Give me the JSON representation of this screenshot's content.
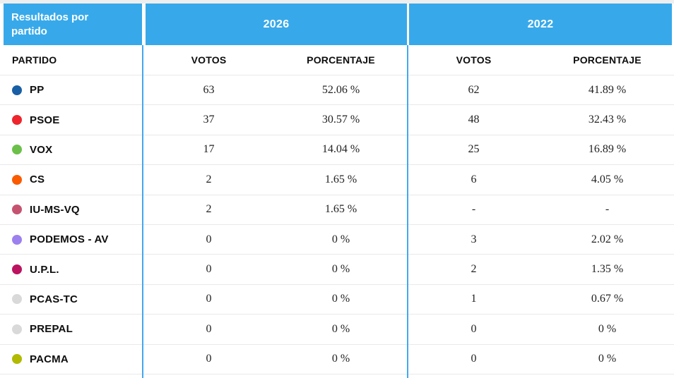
{
  "widget": {
    "title": "Resultados por partido",
    "years": [
      "2026",
      "2022"
    ],
    "column_headers": {
      "party": "PARTIDO",
      "votes": "VOTOS",
      "percentage": "PORCENTAJE"
    },
    "colors": {
      "header_bg": "#37a9ea",
      "divider_line": "#42a9f0",
      "row_border": "#e9e9e9",
      "top_strip": "#eeeeee"
    }
  },
  "rows": [
    {
      "party": "PP",
      "color": "#195fa5",
      "v2026": "63",
      "p2026": "52.06 %",
      "v2022": "62",
      "p2022": "41.89 %"
    },
    {
      "party": "PSOE",
      "color": "#ee252c",
      "v2026": "37",
      "p2026": "30.57 %",
      "v2022": "48",
      "p2022": "32.43 %"
    },
    {
      "party": "VOX",
      "color": "#6cc04a",
      "v2026": "17",
      "p2026": "14.04 %",
      "v2022": "25",
      "p2022": "16.89 %"
    },
    {
      "party": "CS",
      "color": "#fa5b00",
      "v2026": "2",
      "p2026": "1.65 %",
      "v2022": "6",
      "p2022": "4.05 %"
    },
    {
      "party": "IU-MS-VQ",
      "color": "#c5536f",
      "v2026": "2",
      "p2026": "1.65 %",
      "v2022": "-",
      "p2022": "-"
    },
    {
      "party": "PODEMOS - AV",
      "color": "#9c80ee",
      "v2026": "0",
      "p2026": "0 %",
      "v2022": "3",
      "p2022": "2.02 %"
    },
    {
      "party": "U.P.L.",
      "color": "#bb135f",
      "v2026": "0",
      "p2026": "0 %",
      "v2022": "2",
      "p2022": "1.35 %"
    },
    {
      "party": "PCAS-TC",
      "color": "#d9d9d9",
      "v2026": "0",
      "p2026": "0 %",
      "v2022": "1",
      "p2022": "0.67 %"
    },
    {
      "party": "PREPAL",
      "color": "#d9d9d9",
      "v2026": "0",
      "p2026": "0 %",
      "v2022": "0",
      "p2022": "0 %"
    },
    {
      "party": "PACMA",
      "color": "#b1b900",
      "v2026": "0",
      "p2026": "0 %",
      "v2022": "0",
      "p2022": "0 %"
    }
  ],
  "chart_data": {
    "type": "table",
    "title": "Resultados por partido",
    "categories": [
      "PP",
      "PSOE",
      "VOX",
      "CS",
      "IU-MS-VQ",
      "PODEMOS - AV",
      "U.P.L.",
      "PCAS-TC",
      "PREPAL",
      "PACMA"
    ],
    "series": [
      {
        "name": "2026 VOTOS",
        "values": [
          63,
          37,
          17,
          2,
          2,
          0,
          0,
          0,
          0,
          0
        ]
      },
      {
        "name": "2026 PORCENTAJE",
        "values": [
          52.06,
          30.57,
          14.04,
          1.65,
          1.65,
          0,
          0,
          0,
          0,
          0
        ]
      },
      {
        "name": "2022 VOTOS",
        "values": [
          62,
          48,
          25,
          6,
          null,
          3,
          2,
          1,
          0,
          0
        ]
      },
      {
        "name": "2022 PORCENTAJE",
        "values": [
          41.89,
          32.43,
          16.89,
          4.05,
          null,
          2.02,
          1.35,
          0.67,
          0,
          0
        ]
      }
    ]
  }
}
